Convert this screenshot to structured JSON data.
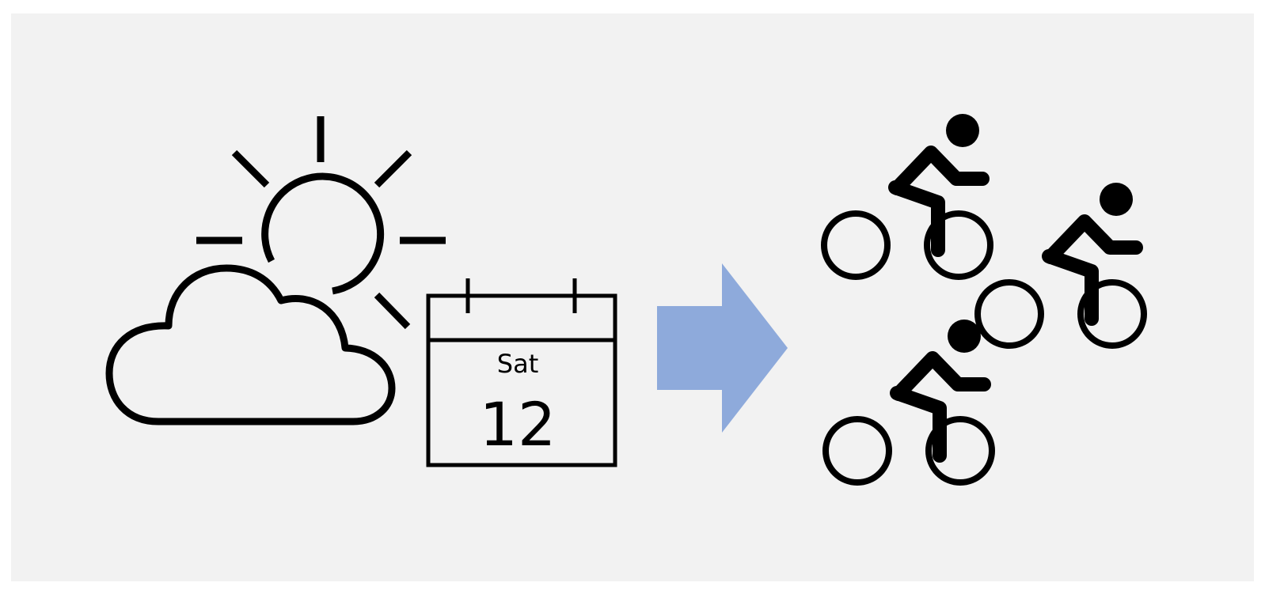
{
  "calendar": {
    "day": "Sat",
    "date": "12"
  },
  "colors": {
    "background": "#f2f2f2",
    "stroke": "#000000",
    "arrow": "#8eaadb"
  },
  "icons": [
    "sun-icon",
    "cloud-icon",
    "calendar-icon",
    "arrow-right-icon",
    "cyclist-icon",
    "cyclist-icon",
    "cyclist-icon"
  ]
}
